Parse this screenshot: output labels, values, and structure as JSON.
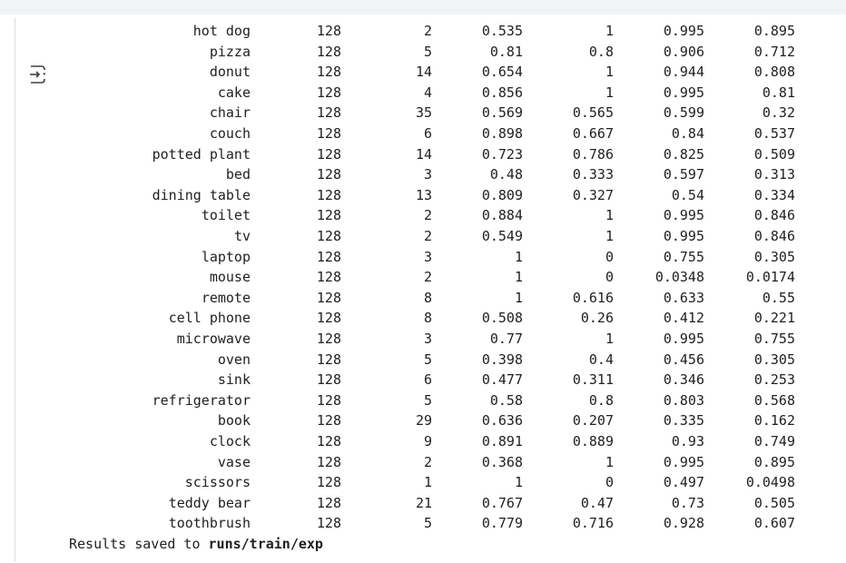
{
  "output": {
    "rows": [
      {
        "name": "hot dog",
        "images": "128",
        "instances": "2",
        "p": "0.535",
        "r": "1",
        "map50": "0.995",
        "map": "0.895"
      },
      {
        "name": "pizza",
        "images": "128",
        "instances": "5",
        "p": "0.81",
        "r": "0.8",
        "map50": "0.906",
        "map": "0.712"
      },
      {
        "name": "donut",
        "images": "128",
        "instances": "14",
        "p": "0.654",
        "r": "1",
        "map50": "0.944",
        "map": "0.808"
      },
      {
        "name": "cake",
        "images": "128",
        "instances": "4",
        "p": "0.856",
        "r": "1",
        "map50": "0.995",
        "map": "0.81"
      },
      {
        "name": "chair",
        "images": "128",
        "instances": "35",
        "p": "0.569",
        "r": "0.565",
        "map50": "0.599",
        "map": "0.32"
      },
      {
        "name": "couch",
        "images": "128",
        "instances": "6",
        "p": "0.898",
        "r": "0.667",
        "map50": "0.84",
        "map": "0.537"
      },
      {
        "name": "potted plant",
        "images": "128",
        "instances": "14",
        "p": "0.723",
        "r": "0.786",
        "map50": "0.825",
        "map": "0.509"
      },
      {
        "name": "bed",
        "images": "128",
        "instances": "3",
        "p": "0.48",
        "r": "0.333",
        "map50": "0.597",
        "map": "0.313"
      },
      {
        "name": "dining table",
        "images": "128",
        "instances": "13",
        "p": "0.809",
        "r": "0.327",
        "map50": "0.54",
        "map": "0.334"
      },
      {
        "name": "toilet",
        "images": "128",
        "instances": "2",
        "p": "0.884",
        "r": "1",
        "map50": "0.995",
        "map": "0.846"
      },
      {
        "name": "tv",
        "images": "128",
        "instances": "2",
        "p": "0.549",
        "r": "1",
        "map50": "0.995",
        "map": "0.846"
      },
      {
        "name": "laptop",
        "images": "128",
        "instances": "3",
        "p": "1",
        "r": "0",
        "map50": "0.755",
        "map": "0.305"
      },
      {
        "name": "mouse",
        "images": "128",
        "instances": "2",
        "p": "1",
        "r": "0",
        "map50": "0.0348",
        "map": "0.0174"
      },
      {
        "name": "remote",
        "images": "128",
        "instances": "8",
        "p": "1",
        "r": "0.616",
        "map50": "0.633",
        "map": "0.55"
      },
      {
        "name": "cell phone",
        "images": "128",
        "instances": "8",
        "p": "0.508",
        "r": "0.26",
        "map50": "0.412",
        "map": "0.221"
      },
      {
        "name": "microwave",
        "images": "128",
        "instances": "3",
        "p": "0.77",
        "r": "1",
        "map50": "0.995",
        "map": "0.755"
      },
      {
        "name": "oven",
        "images": "128",
        "instances": "5",
        "p": "0.398",
        "r": "0.4",
        "map50": "0.456",
        "map": "0.305"
      },
      {
        "name": "sink",
        "images": "128",
        "instances": "6",
        "p": "0.477",
        "r": "0.311",
        "map50": "0.346",
        "map": "0.253"
      },
      {
        "name": "refrigerator",
        "images": "128",
        "instances": "5",
        "p": "0.58",
        "r": "0.8",
        "map50": "0.803",
        "map": "0.568"
      },
      {
        "name": "book",
        "images": "128",
        "instances": "29",
        "p": "0.636",
        "r": "0.207",
        "map50": "0.335",
        "map": "0.162"
      },
      {
        "name": "clock",
        "images": "128",
        "instances": "9",
        "p": "0.891",
        "r": "0.889",
        "map50": "0.93",
        "map": "0.749"
      },
      {
        "name": "vase",
        "images": "128",
        "instances": "2",
        "p": "0.368",
        "r": "1",
        "map50": "0.995",
        "map": "0.895"
      },
      {
        "name": "scissors",
        "images": "128",
        "instances": "1",
        "p": "1",
        "r": "0",
        "map50": "0.497",
        "map": "0.0498"
      },
      {
        "name": "teddy bear",
        "images": "128",
        "instances": "21",
        "p": "0.767",
        "r": "0.47",
        "map50": "0.73",
        "map": "0.505"
      },
      {
        "name": "toothbrush",
        "images": "128",
        "instances": "5",
        "p": "0.779",
        "r": "0.716",
        "map50": "0.928",
        "map": "0.607"
      }
    ],
    "footer_prefix": "Results saved to ",
    "footer_path": "runs/train/exp"
  },
  "icons": {
    "output_toggle": "output-toggle-icon"
  },
  "colors": {
    "topbar": "#f1f3f4",
    "text": "#212121",
    "gutter": "#dadce0"
  }
}
